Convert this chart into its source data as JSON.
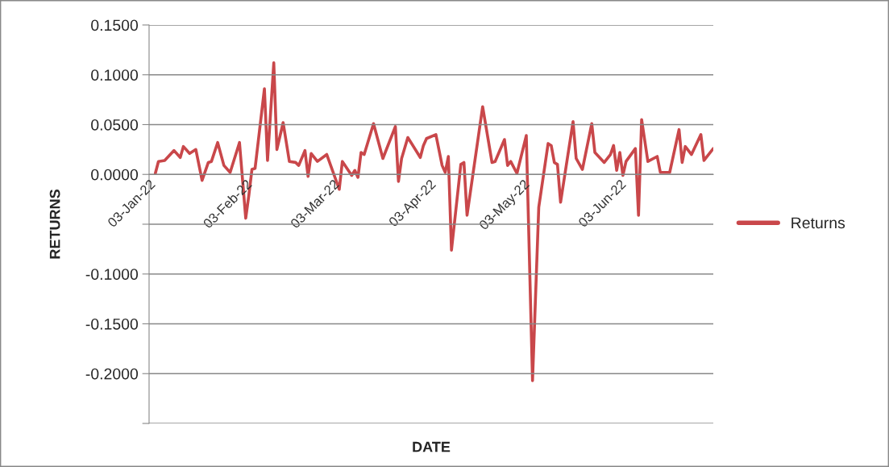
{
  "chart_data": {
    "type": "line",
    "xlabel": "DATE",
    "ylabel": "RETURNS",
    "x": [
      "2022-01-05",
      "2022-01-06",
      "2022-01-08",
      "2022-01-11",
      "2022-01-13",
      "2022-01-14",
      "2022-01-16",
      "2022-01-18",
      "2022-01-20",
      "2022-01-22",
      "2022-01-23",
      "2022-01-25",
      "2022-01-27",
      "2022-01-29",
      "2022-02-01",
      "2022-02-03",
      "2022-02-04",
      "2022-02-05",
      "2022-02-06",
      "2022-02-09",
      "2022-02-10",
      "2022-02-12",
      "2022-02-13",
      "2022-02-15",
      "2022-02-17",
      "2022-02-19",
      "2022-02-20",
      "2022-02-22",
      "2022-02-23",
      "2022-02-24",
      "2022-02-26",
      "2022-03-01",
      "2022-03-05",
      "2022-03-06",
      "2022-03-09",
      "2022-03-10",
      "2022-03-11",
      "2022-03-12",
      "2022-03-13",
      "2022-03-16",
      "2022-03-19",
      "2022-03-23",
      "2022-03-24",
      "2022-03-25",
      "2022-03-27",
      "2022-03-31",
      "2022-04-01",
      "2022-04-02",
      "2022-04-05",
      "2022-04-07",
      "2022-04-08",
      "2022-04-09",
      "2022-04-10",
      "2022-04-13",
      "2022-04-14",
      "2022-04-15",
      "2022-04-20",
      "2022-04-23",
      "2022-04-24",
      "2022-04-27",
      "2022-04-28",
      "2022-04-29",
      "2022-05-01",
      "2022-05-04",
      "2022-05-06",
      "2022-05-08",
      "2022-05-11",
      "2022-05-12",
      "2022-05-13",
      "2022-05-14",
      "2022-05-15",
      "2022-05-19",
      "2022-05-20",
      "2022-05-22",
      "2022-05-25",
      "2022-05-26",
      "2022-05-29",
      "2022-05-31",
      "2022-06-01",
      "2022-06-02",
      "2022-06-03",
      "2022-06-04",
      "2022-06-05",
      "2022-06-08",
      "2022-06-09",
      "2022-06-10",
      "2022-06-12",
      "2022-06-15",
      "2022-06-16",
      "2022-06-19",
      "2022-06-22",
      "2022-06-23",
      "2022-06-24",
      "2022-06-26",
      "2022-06-29",
      "2022-06-30",
      "2022-07-03"
    ],
    "series": [
      {
        "name": "Returns",
        "color": "#c9474a",
        "values": [
          0.001,
          0.013,
          0.014,
          0.024,
          0.017,
          0.028,
          0.021,
          0.025,
          -0.006,
          0.012,
          0.013,
          0.032,
          0.009,
          0.002,
          0.032,
          -0.044,
          -0.021,
          0.005,
          0.006,
          0.086,
          0.014,
          0.112,
          0.025,
          0.052,
          0.013,
          0.012,
          0.009,
          0.024,
          -0.002,
          0.021,
          0.013,
          0.02,
          -0.015,
          0.013,
          -0.001,
          0.004,
          -0.003,
          0.022,
          0.02,
          0.051,
          0.016,
          0.048,
          -0.007,
          0.016,
          0.037,
          0.017,
          0.029,
          0.036,
          0.04,
          0.009,
          0.002,
          0.018,
          -0.076,
          0.01,
          0.012,
          -0.041,
          0.068,
          0.012,
          0.013,
          0.035,
          0.009,
          0.013,
          0.001,
          0.039,
          -0.207,
          -0.033,
          0.031,
          0.029,
          0.012,
          0.01,
          -0.028,
          0.053,
          0.016,
          0.005,
          0.051,
          0.022,
          0.012,
          0.02,
          0.029,
          0.004,
          0.022,
          -0.001,
          0.013,
          0.026,
          -0.041,
          0.055,
          0.013,
          0.018,
          0.002,
          0.002,
          0.045,
          0.012,
          0.028,
          0.02,
          0.04,
          0.014,
          0.026
        ]
      }
    ],
    "xlim": [
      "2022-01-03",
      "2022-07-03"
    ],
    "xticks": [
      {
        "value": "2022-01-03",
        "label": "03-Jan-22"
      },
      {
        "value": "2022-02-03",
        "label": "03-Feb-22"
      },
      {
        "value": "2022-03-03",
        "label": "03-Mar-22"
      },
      {
        "value": "2022-04-03",
        "label": "03-Apr-22"
      },
      {
        "value": "2022-05-03",
        "label": "03-May-22"
      },
      {
        "value": "2022-06-03",
        "label": "03-Jun-22"
      }
    ],
    "ylim": [
      -0.25,
      0.15
    ],
    "yticks": [
      {
        "value": -0.25,
        "label": null
      },
      {
        "value": -0.2,
        "label": "-0.2000"
      },
      {
        "value": -0.15,
        "label": "-0.1500"
      },
      {
        "value": -0.1,
        "label": "-0.1000"
      },
      {
        "value": -0.05,
        "label": null
      },
      {
        "value": 0,
        "label": "0.0000"
      },
      {
        "value": 0.05,
        "label": "0.0500"
      },
      {
        "value": 0.1,
        "label": "0.1000"
      },
      {
        "value": 0.15,
        "label": "0.1500"
      }
    ],
    "grid": "y",
    "legend": "right",
    "marker": "none",
    "line_style": "solid"
  }
}
